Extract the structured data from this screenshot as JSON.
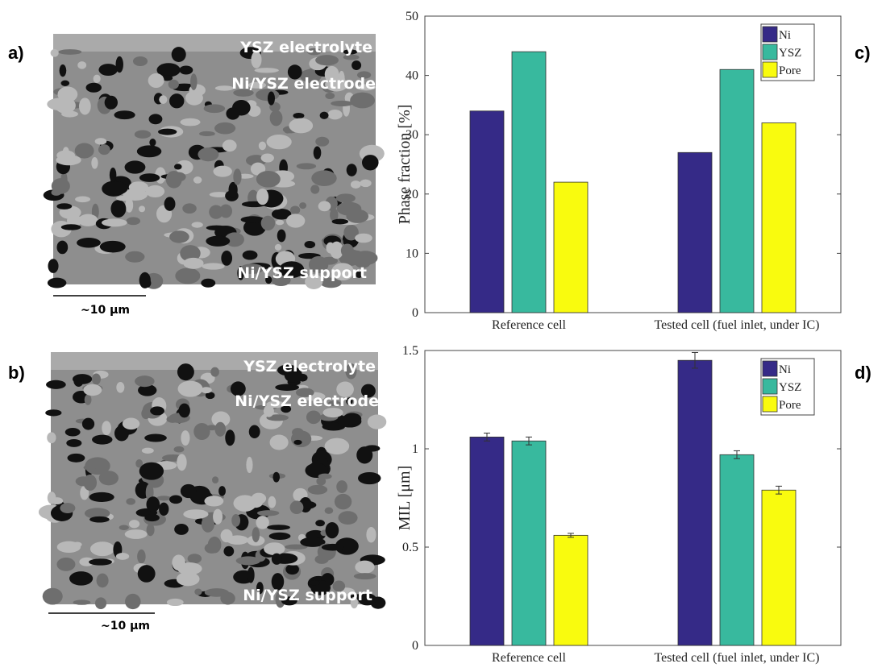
{
  "panel_labels": [
    "a)",
    "b)",
    "c)",
    "d)"
  ],
  "micrographs": [
    {
      "labels": [
        "YSZ electrolyte",
        "Ni/YSZ electrode",
        "Ni/YSZ support"
      ],
      "scale_bar": "~10 μm"
    },
    {
      "labels": [
        "YSZ electrolyte",
        "Ni/YSZ electrode",
        "Ni/YSZ support"
      ],
      "scale_bar": "~10 μm"
    }
  ],
  "chart_data": [
    {
      "type": "bar",
      "ylabel": "Phase fraction [%]",
      "categories": [
        "Reference cell",
        "Tested cell (fuel inlet, under IC)"
      ],
      "series": [
        {
          "name": "Ni",
          "color": "#352a87",
          "values": [
            34,
            27
          ]
        },
        {
          "name": "YSZ",
          "color": "#38b99e",
          "values": [
            44,
            41
          ]
        },
        {
          "name": "Pore",
          "color": "#f9fb0e",
          "values": [
            22,
            32
          ]
        }
      ],
      "ylim": [
        0,
        50
      ],
      "yticks": [
        0,
        10,
        20,
        30,
        40,
        50
      ],
      "grid": false,
      "legend": "upper right"
    },
    {
      "type": "bar",
      "ylabel": "MIL [μm]",
      "categories": [
        "Reference cell",
        "Tested cell (fuel inlet, under IC)"
      ],
      "series": [
        {
          "name": "Ni",
          "color": "#352a87",
          "values": [
            1.06,
            1.45
          ],
          "errors": [
            0.02,
            0.04
          ]
        },
        {
          "name": "YSZ",
          "color": "#38b99e",
          "values": [
            1.04,
            0.97
          ],
          "errors": [
            0.02,
            0.02
          ]
        },
        {
          "name": "Pore",
          "color": "#f9fb0e",
          "values": [
            0.56,
            0.79
          ],
          "errors": [
            0.01,
            0.02
          ]
        }
      ],
      "ylim": [
        0,
        1.5
      ],
      "yticks": [
        0,
        0.5,
        1,
        1.5
      ],
      "grid": false,
      "legend": "upper right"
    }
  ]
}
